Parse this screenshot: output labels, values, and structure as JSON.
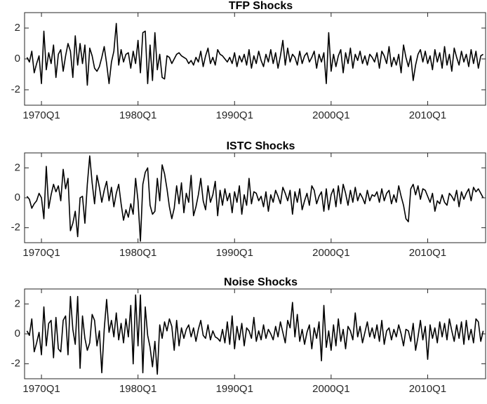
{
  "chart_data": [
    {
      "type": "line",
      "title": "TFP Shocks",
      "color": "#000000",
      "x": [
        1968.5,
        1968.75,
        1969,
        1969.25,
        1969.5,
        1969.75,
        1970,
        1970.25,
        1970.5,
        1970.75,
        1971,
        1971.25,
        1971.5,
        1971.75,
        1972,
        1972.25,
        1972.5,
        1972.75,
        1973,
        1973.25,
        1973.5,
        1973.75,
        1974,
        1974.25,
        1974.5,
        1974.75,
        1975,
        1975.25,
        1975.5,
        1975.75,
        1976,
        1976.25,
        1976.5,
        1976.75,
        1977,
        1977.25,
        1977.5,
        1977.75,
        1978,
        1978.25,
        1978.5,
        1978.75,
        1979,
        1979.25,
        1979.5,
        1979.75,
        1980,
        1980.25,
        1980.5,
        1980.75,
        1981,
        1981.25,
        1981.5,
        1981.75,
        1982,
        1982.25,
        1982.5,
        1982.75,
        1983,
        1983.25,
        1983.5,
        1983.75,
        1984,
        1984.25,
        1984.5,
        1984.75,
        1985,
        1985.25,
        1985.5,
        1985.75,
        1986,
        1986.25,
        1986.5,
        1986.75,
        1987,
        1987.25,
        1987.5,
        1987.75,
        1988,
        1988.25,
        1988.5,
        1988.75,
        1989,
        1989.25,
        1989.5,
        1989.75,
        1990,
        1990.25,
        1990.5,
        1990.75,
        1991,
        1991.25,
        1991.5,
        1991.75,
        1992,
        1992.25,
        1992.5,
        1992.75,
        1993,
        1993.25,
        1993.5,
        1993.75,
        1994,
        1994.25,
        1994.5,
        1994.75,
        1995,
        1995.25,
        1995.5,
        1995.75,
        1996,
        1996.25,
        1996.5,
        1996.75,
        1997,
        1997.25,
        1997.5,
        1997.75,
        1998,
        1998.25,
        1998.5,
        1998.75,
        1999,
        1999.25,
        1999.5,
        1999.75,
        2000,
        2000.25,
        2000.5,
        2000.75,
        2001,
        2001.25,
        2001.5,
        2001.75,
        2002,
        2002.25,
        2002.5,
        2002.75,
        2003,
        2003.25,
        2003.5,
        2003.75,
        2004,
        2004.25,
        2004.5,
        2004.75,
        2005,
        2005.25,
        2005.5,
        2005.75,
        2006,
        2006.25,
        2006.5,
        2006.75,
        2007,
        2007.25,
        2007.5,
        2007.75,
        2008,
        2008.25,
        2008.5,
        2008.75,
        2009,
        2009.25,
        2009.5,
        2009.75,
        2010,
        2010.25,
        2010.5,
        2010.75,
        2011,
        2011.25,
        2011.5,
        2011.75,
        2012,
        2012.25,
        2012.5,
        2012.75,
        2013,
        2013.25,
        2013.5,
        2013.75,
        2014,
        2014.25,
        2014.5,
        2014.75,
        2015,
        2015.25,
        2015.5,
        2015.75
      ],
      "values": [
        0.1,
        -0.2,
        0.5,
        -0.9,
        -0.3,
        0.2,
        -1.6,
        1.8,
        -0.7,
        0.4,
        -0.3,
        0.9,
        -1.2,
        0.3,
        0.6,
        -0.8,
        0.2,
        1.0,
        0.5,
        -1.2,
        1.5,
        -0.4,
        1.0,
        -0.3,
        0.9,
        -1.7,
        0.7,
        0.2,
        -0.6,
        -0.8,
        -0.5,
        0.1,
        0.8,
        -0.3,
        -1.6,
        -0.2,
        0.5,
        2.3,
        -0.4,
        0.6,
        -0.2,
        0.3,
        0.4,
        -0.6,
        0.5,
        -0.3,
        1.2,
        -0.9,
        1.7,
        1.8,
        -1.6,
        0.9,
        -1.4,
        1.7,
        -0.7,
        0.3,
        -1.2,
        -1.3,
        0.2,
        0.1,
        -0.3,
        0.0,
        0.3,
        0.4,
        0.2,
        0.1,
        0.0,
        -0.3,
        -0.1,
        -0.4,
        0.1,
        -0.2,
        0.5,
        -0.5,
        0.2,
        0.7,
        -0.3,
        0.1,
        -0.4,
        0.6,
        0.3,
        0.2,
        0.0,
        -0.2,
        0.1,
        -0.3,
        0.4,
        -0.5,
        0.2,
        -0.2,
        0.3,
        -0.4,
        0.6,
        -0.6,
        0.2,
        -0.3,
        0.5,
        -0.1,
        -0.5,
        0.3,
        -0.2,
        0.6,
        -0.3,
        0.4,
        -0.6,
        0.2,
        1.2,
        -0.4,
        0.7,
        -0.2,
        0.3,
        0.1,
        -0.4,
        0.5,
        -0.3,
        0.2,
        0.4,
        -0.2,
        0.1,
        0.5,
        -0.6,
        0.3,
        -0.2,
        0.4,
        -1.6,
        1.7,
        -0.8,
        0.3,
        -0.5,
        0.2,
        0.6,
        -0.9,
        0.4,
        -0.3,
        0.7,
        -0.6,
        0.3,
        -0.1,
        0.5,
        -0.3,
        0.2,
        -0.4,
        0.3,
        0.1,
        -0.2,
        0.4,
        -0.6,
        0.5,
        0.2,
        -0.3,
        0.8,
        -0.5,
        0.1,
        -0.4,
        0.3,
        -0.9,
        0.9,
        0.1,
        -0.5,
        0.2,
        -1.4,
        -0.4,
        0.3,
        0.6,
        -0.2,
        0.5,
        -0.3,
        0.2,
        -0.7,
        0.6,
        -0.2,
        0.4,
        -0.6,
        0.8,
        -0.4,
        0.3,
        -0.8,
        0.7,
        0.1,
        -0.4,
        0.5,
        -0.2,
        0.3,
        -0.5,
        0.6,
        -0.3,
        0.5,
        -0.6,
        0.2,
        0.3
      ],
      "xlim": [
        1968.25,
        2016
      ],
      "xticks": [
        {
          "value": 1970,
          "label": "1970Q1"
        },
        {
          "value": 1980,
          "label": "1980Q1"
        },
        {
          "value": 1990,
          "label": "1990Q1"
        },
        {
          "value": 2000,
          "label": "2000Q1"
        },
        {
          "value": 2010,
          "label": "2010Q1"
        }
      ],
      "ylim": [
        -3,
        3
      ],
      "yticks": [
        -2,
        0,
        2
      ],
      "grid": false
    },
    {
      "type": "line",
      "title": "ISTC Shocks",
      "color": "#000000",
      "x": [
        1968.5,
        1968.75,
        1969,
        1969.25,
        1969.5,
        1969.75,
        1970,
        1970.25,
        1970.5,
        1970.75,
        1971,
        1971.25,
        1971.5,
        1971.75,
        1972,
        1972.25,
        1972.5,
        1972.75,
        1973,
        1973.25,
        1973.5,
        1973.75,
        1974,
        1974.25,
        1974.5,
        1974.75,
        1975,
        1975.25,
        1975.5,
        1975.75,
        1976,
        1976.25,
        1976.5,
        1976.75,
        1977,
        1977.25,
        1977.5,
        1977.75,
        1978,
        1978.25,
        1978.5,
        1978.75,
        1979,
        1979.25,
        1979.5,
        1979.75,
        1980,
        1980.25,
        1980.5,
        1980.75,
        1981,
        1981.25,
        1981.5,
        1981.75,
        1982,
        1982.25,
        1982.5,
        1982.75,
        1983,
        1983.25,
        1983.5,
        1983.75,
        1984,
        1984.25,
        1984.5,
        1984.75,
        1985,
        1985.25,
        1985.5,
        1985.75,
        1986,
        1986.25,
        1986.5,
        1986.75,
        1987,
        1987.25,
        1987.5,
        1987.75,
        1988,
        1988.25,
        1988.5,
        1988.75,
        1989,
        1989.25,
        1989.5,
        1989.75,
        1990,
        1990.25,
        1990.5,
        1990.75,
        1991,
        1991.25,
        1991.5,
        1991.75,
        1992,
        1992.25,
        1992.5,
        1992.75,
        1993,
        1993.25,
        1993.5,
        1993.75,
        1994,
        1994.25,
        1994.5,
        1994.75,
        1995,
        1995.25,
        1995.5,
        1995.75,
        1996,
        1996.25,
        1996.5,
        1996.75,
        1997,
        1997.25,
        1997.5,
        1997.75,
        1998,
        1998.25,
        1998.5,
        1998.75,
        1999,
        1999.25,
        1999.5,
        1999.75,
        2000,
        2000.25,
        2000.5,
        2000.75,
        2001,
        2001.25,
        2001.5,
        2001.75,
        2002,
        2002.25,
        2002.5,
        2002.75,
        2003,
        2003.25,
        2003.5,
        2003.75,
        2004,
        2004.25,
        2004.5,
        2004.75,
        2005,
        2005.25,
        2005.5,
        2005.75,
        2006,
        2006.25,
        2006.5,
        2006.75,
        2007,
        2007.25,
        2007.5,
        2007.75,
        2008,
        2008.25,
        2008.5,
        2008.75,
        2009,
        2009.25,
        2009.5,
        2009.75,
        2010,
        2010.25,
        2010.5,
        2010.75,
        2011,
        2011.25,
        2011.5,
        2011.75,
        2012,
        2012.25,
        2012.5,
        2012.75,
        2013,
        2013.25,
        2013.5,
        2013.75,
        2014,
        2014.25,
        2014.5,
        2014.75,
        2015,
        2015.25,
        2015.5,
        2015.75
      ],
      "values": [
        0.1,
        -0.1,
        -0.7,
        -0.4,
        -0.2,
        0.3,
        0.0,
        -1.4,
        2.1,
        -0.7,
        0.2,
        0.9,
        0.4,
        0.8,
        -0.2,
        1.9,
        0.6,
        1.3,
        -2.2,
        -1.7,
        -0.9,
        -2.6,
        0.0,
        0.1,
        -1.7,
        0.9,
        2.8,
        1.0,
        -0.4,
        1.5,
        0.7,
        -0.3,
        0.5,
        1.1,
        -0.2,
        0.7,
        -0.6,
        0.3,
        0.9,
        -0.4,
        -1.5,
        -0.8,
        -1.3,
        -0.4,
        -1.1,
        1.3,
        -0.2,
        -2.9,
        0.9,
        1.7,
        2.0,
        -0.5,
        -1.1,
        -0.9,
        1.3,
        -0.2,
        2.2,
        1.6,
        0.6,
        -0.6,
        -1.4,
        -0.7,
        0.8,
        -0.4,
        1.0,
        -1.0,
        0.3,
        -0.3,
        1.5,
        -1.2,
        -0.6,
        0.2,
        1.3,
        -0.2,
        -0.8,
        0.8,
        -0.3,
        0.2,
        1.1,
        -1.2,
        0.5,
        -0.5,
        0.6,
        -0.2,
        0.3,
        -1.0,
        0.4,
        -0.3,
        0.8,
        -1.1,
        0.2,
        -0.5,
        1.3,
        -0.4,
        0.4,
        0.3,
        -0.2,
        0.1,
        -0.6,
        0.4,
        -0.9,
        0.2,
        -0.3,
        0.5,
        0.1,
        -0.4,
        0.7,
        0.3,
        -0.2,
        0.5,
        -1.1,
        0.4,
        -0.3,
        0.6,
        -0.8,
        -0.2,
        0.3,
        -0.5,
        0.8,
        0.5,
        -0.4,
        0.1,
        0.4,
        -0.9,
        0.6,
        -0.8,
        0.2,
        0.6,
        -0.6,
        0.8,
        -0.4,
        0.9,
        0.3,
        -0.5,
        0.5,
        -0.3,
        0.7,
        -0.2,
        0.3,
        0.0,
        -0.4,
        0.5,
        -0.2,
        0.2,
        0.1,
        0.4,
        -0.3,
        0.6,
        -0.2,
        0.3,
        0.5,
        -0.4,
        0.2,
        -0.3,
        0.8,
        0.1,
        -0.5,
        -1.4,
        -1.6,
        0.6,
        0.9,
        0.2,
        0.8,
        -0.1,
        0.6,
        0.5,
        0.1,
        -0.3,
        0.3,
        -0.9,
        -0.2,
        -0.4,
        0.2,
        -0.3,
        -0.5,
        0.3,
        0.1,
        -0.2,
        0.5,
        -0.6,
        0.4,
        -0.1,
        0.3,
        0.6,
        -0.2,
        0.7,
        0.4,
        0.6,
        0.3,
        0.0
      ],
      "xlim": [
        1968.25,
        2016
      ],
      "xticks": [
        {
          "value": 1970,
          "label": "1970Q1"
        },
        {
          "value": 1980,
          "label": "1980Q1"
        },
        {
          "value": 1990,
          "label": "1990Q1"
        },
        {
          "value": 2000,
          "label": "2000Q1"
        },
        {
          "value": 2010,
          "label": "2010Q1"
        }
      ],
      "ylim": [
        -3,
        3
      ],
      "yticks": [
        -2,
        0,
        2
      ],
      "grid": false
    },
    {
      "type": "line",
      "title": "Noise Shocks",
      "color": "#000000",
      "x": [
        1968.5,
        1968.75,
        1969,
        1969.25,
        1969.5,
        1969.75,
        1970,
        1970.25,
        1970.5,
        1970.75,
        1971,
        1971.25,
        1971.5,
        1971.75,
        1972,
        1972.25,
        1972.5,
        1972.75,
        1973,
        1973.25,
        1973.5,
        1973.75,
        1974,
        1974.25,
        1974.5,
        1974.75,
        1975,
        1975.25,
        1975.5,
        1975.75,
        1976,
        1976.25,
        1976.5,
        1976.75,
        1977,
        1977.25,
        1977.5,
        1977.75,
        1978,
        1978.25,
        1978.5,
        1978.75,
        1979,
        1979.25,
        1979.5,
        1979.75,
        1980,
        1980.25,
        1980.5,
        1980.75,
        1981,
        1981.25,
        1981.5,
        1981.75,
        1982,
        1982.25,
        1982.5,
        1982.75,
        1983,
        1983.25,
        1983.5,
        1983.75,
        1984,
        1984.25,
        1984.5,
        1984.75,
        1985,
        1985.25,
        1985.5,
        1985.75,
        1986,
        1986.25,
        1986.5,
        1986.75,
        1987,
        1987.25,
        1987.5,
        1987.75,
        1988,
        1988.25,
        1988.5,
        1988.75,
        1989,
        1989.25,
        1989.5,
        1989.75,
        1990,
        1990.25,
        1990.5,
        1990.75,
        1991,
        1991.25,
        1991.5,
        1991.75,
        1992,
        1992.25,
        1992.5,
        1992.75,
        1993,
        1993.25,
        1993.5,
        1993.75,
        1994,
        1994.25,
        1994.5,
        1994.75,
        1995,
        1995.25,
        1995.5,
        1995.75,
        1996,
        1996.25,
        1996.5,
        1996.75,
        1997,
        1997.25,
        1997.5,
        1997.75,
        1998,
        1998.25,
        1998.5,
        1998.75,
        1999,
        1999.25,
        1999.5,
        1999.75,
        2000,
        2000.25,
        2000.5,
        2000.75,
        2001,
        2001.25,
        2001.5,
        2001.75,
        2002,
        2002.25,
        2002.5,
        2002.75,
        2003,
        2003.25,
        2003.5,
        2003.75,
        2004,
        2004.25,
        2004.5,
        2004.75,
        2005,
        2005.25,
        2005.5,
        2005.75,
        2006,
        2006.25,
        2006.5,
        2006.75,
        2007,
        2007.25,
        2007.5,
        2007.75,
        2008,
        2008.25,
        2008.5,
        2008.75,
        2009,
        2009.25,
        2009.5,
        2009.75,
        2010,
        2010.25,
        2010.5,
        2010.75,
        2011,
        2011.25,
        2011.5,
        2011.75,
        2012,
        2012.25,
        2012.5,
        2012.75,
        2013,
        2013.25,
        2013.5,
        2013.75,
        2014,
        2014.25,
        2014.5,
        2014.75,
        2015,
        2015.25,
        2015.5,
        2015.75
      ],
      "values": [
        0.2,
        -0.1,
        1.0,
        -1.2,
        -0.6,
        0.1,
        -1.4,
        1.8,
        -0.8,
        0.7,
        0.9,
        -1.6,
        1.1,
        -1.0,
        -1.2,
        0.9,
        1.2,
        -1.4,
        2.5,
        0.3,
        -0.7,
        2.5,
        -2.3,
        1.2,
        -0.3,
        -1.1,
        -0.6,
        1.3,
        0.9,
        -0.8,
        0.2,
        -2.6,
        0.3,
        2.3,
        0.1,
        0.9,
        -0.2,
        1.4,
        -0.4,
        0.7,
        -0.6,
        1.0,
        -0.2,
        1.9,
        -2.0,
        2.6,
        -0.8,
        2.6,
        -2.6,
        1.8,
        -0.1,
        -0.9,
        -2.2,
        -0.5,
        -2.7,
        0.6,
        -0.3,
        0.8,
        0.2,
        1.0,
        0.5,
        -1.1,
        0.9,
        -0.8,
        0.4,
        -0.3,
        0.3,
        0.6,
        -0.2,
        0.4,
        -0.5,
        0.3,
        0.9,
        -0.1,
        -0.3,
        0.6,
        -0.4,
        0.2,
        -0.2,
        -0.3,
        -0.5,
        0.3,
        -0.6,
        0.8,
        -0.7,
        1.2,
        -1.0,
        0.5,
        -0.4,
        0.7,
        -0.8,
        0.4,
        0.2,
        -0.3,
        1.1,
        -0.5,
        0.2,
        -0.4,
        0.6,
        -0.3,
        0.3,
        0.0,
        -0.4,
        0.5,
        -0.2,
        0.8,
        0.1,
        -0.6,
        0.9,
        0.4,
        2.1,
        -0.2,
        1.3,
        -0.5,
        0.3,
        -0.7,
        0.1,
        0.6,
        -1.0,
        0.4,
        -0.3,
        0.8,
        -1.8,
        1.9,
        -0.9,
        0.2,
        -1.1,
        0.6,
        -0.8,
        1.0,
        -0.5,
        0.3,
        -1.0,
        0.5,
        0.2,
        -0.4,
        1.4,
        -0.2,
        0.5,
        -0.6,
        0.1,
        0.8,
        -0.2,
        0.4,
        -0.3,
        0.6,
        -0.5,
        0.9,
        -0.7,
        0.2,
        0.4,
        -0.4,
        0.3,
        -0.2,
        0.6,
        0.0,
        -0.8,
        0.3,
        0.2,
        -0.5,
        0.7,
        -1.1,
        -0.2,
        0.9,
        -0.4,
        0.5,
        -1.7,
        0.6,
        -0.3,
        0.4,
        -0.6,
        0.8,
        -0.2,
        0.7,
        -0.4,
        1.0,
        0.2,
        -0.5,
        0.6,
        -0.3,
        0.8,
        -0.7,
        0.9,
        -0.4,
        0.3,
        -0.6,
        1.0,
        0.8,
        -0.5,
        0.2
      ],
      "xlim": [
        1968.25,
        2016
      ],
      "xticks": [
        {
          "value": 1970,
          "label": "1970Q1"
        },
        {
          "value": 1980,
          "label": "1980Q1"
        },
        {
          "value": 1990,
          "label": "1990Q1"
        },
        {
          "value": 2000,
          "label": "2000Q1"
        },
        {
          "value": 2010,
          "label": "2010Q1"
        }
      ],
      "ylim": [
        -3,
        3
      ],
      "yticks": [
        -2,
        0,
        2
      ],
      "grid": false
    }
  ]
}
